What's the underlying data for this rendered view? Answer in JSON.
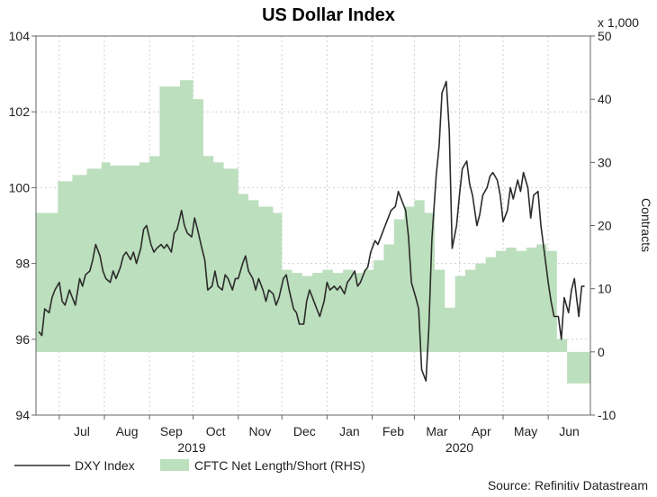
{
  "chart_data": {
    "type": "line+area",
    "title": "US Dollar Index",
    "x_axis": {
      "months": [
        "Jul",
        "Aug",
        "Sep",
        "Oct",
        "Nov",
        "Dec",
        "Jan",
        "Feb",
        "Mar",
        "Apr",
        "May",
        "Jun"
      ],
      "years": [
        "2019",
        "2020"
      ]
    },
    "y_left": {
      "range": [
        94,
        104
      ],
      "ticks": [
        94,
        96,
        98,
        100,
        102,
        104
      ]
    },
    "y_right": {
      "range": [
        -10,
        50
      ],
      "ticks": [
        -10,
        0,
        10,
        20,
        30,
        40,
        50
      ],
      "unit_label": "x 1,000",
      "label": "Contracts"
    },
    "grid": true,
    "legend_position": "bottom-left",
    "series": [
      {
        "name": "DXY Index",
        "type": "line",
        "color": "#2b2b2b",
        "axis": "left",
        "points": [
          [
            "2019-06-17",
            96.2
          ],
          [
            "2019-06-19",
            96.1
          ],
          [
            "2019-06-21",
            96.8
          ],
          [
            "2019-06-24",
            96.7
          ],
          [
            "2019-06-26",
            97.1
          ],
          [
            "2019-06-28",
            97.3
          ],
          [
            "2019-07-01",
            97.5
          ],
          [
            "2019-07-03",
            97.0
          ],
          [
            "2019-07-05",
            96.9
          ],
          [
            "2019-07-08",
            97.3
          ],
          [
            "2019-07-10",
            97.1
          ],
          [
            "2019-07-12",
            96.9
          ],
          [
            "2019-07-15",
            97.6
          ],
          [
            "2019-07-17",
            97.4
          ],
          [
            "2019-07-19",
            97.7
          ],
          [
            "2019-07-22",
            97.8
          ],
          [
            "2019-07-24",
            98.1
          ],
          [
            "2019-07-26",
            98.5
          ],
          [
            "2019-07-29",
            98.2
          ],
          [
            "2019-07-31",
            97.8
          ],
          [
            "2019-08-02",
            97.6
          ],
          [
            "2019-08-05",
            97.5
          ],
          [
            "2019-08-07",
            97.8
          ],
          [
            "2019-08-09",
            97.6
          ],
          [
            "2019-08-12",
            97.9
          ],
          [
            "2019-08-14",
            98.2
          ],
          [
            "2019-08-16",
            98.3
          ],
          [
            "2019-08-19",
            98.1
          ],
          [
            "2019-08-21",
            98.3
          ],
          [
            "2019-08-23",
            98.0
          ],
          [
            "2019-08-26",
            98.4
          ],
          [
            "2019-08-28",
            98.9
          ],
          [
            "2019-08-30",
            99.0
          ],
          [
            "2019-09-02",
            98.5
          ],
          [
            "2019-09-04",
            98.3
          ],
          [
            "2019-09-06",
            98.4
          ],
          [
            "2019-09-09",
            98.5
          ],
          [
            "2019-09-11",
            98.4
          ],
          [
            "2019-09-13",
            98.5
          ],
          [
            "2019-09-16",
            98.3
          ],
          [
            "2019-09-18",
            98.8
          ],
          [
            "2019-09-20",
            98.9
          ],
          [
            "2019-09-23",
            99.4
          ],
          [
            "2019-09-25",
            99.0
          ],
          [
            "2019-09-27",
            98.8
          ],
          [
            "2019-09-30",
            98.7
          ],
          [
            "2019-10-02",
            99.2
          ],
          [
            "2019-10-04",
            98.9
          ],
          [
            "2019-10-07",
            98.4
          ],
          [
            "2019-10-09",
            98.1
          ],
          [
            "2019-10-11",
            97.3
          ],
          [
            "2019-10-14",
            97.4
          ],
          [
            "2019-10-16",
            97.8
          ],
          [
            "2019-10-18",
            97.4
          ],
          [
            "2019-10-21",
            97.3
          ],
          [
            "2019-10-23",
            97.7
          ],
          [
            "2019-10-25",
            97.6
          ],
          [
            "2019-10-28",
            97.3
          ],
          [
            "2019-10-30",
            97.6
          ],
          [
            "2019-11-01",
            97.6
          ],
          [
            "2019-11-04",
            98.0
          ],
          [
            "2019-11-06",
            98.2
          ],
          [
            "2019-11-08",
            97.8
          ],
          [
            "2019-11-11",
            97.6
          ],
          [
            "2019-11-13",
            97.3
          ],
          [
            "2019-11-15",
            97.6
          ],
          [
            "2019-11-18",
            97.3
          ],
          [
            "2019-11-20",
            97.0
          ],
          [
            "2019-11-22",
            97.3
          ],
          [
            "2019-11-25",
            97.2
          ],
          [
            "2019-11-27",
            96.9
          ],
          [
            "2019-11-29",
            97.1
          ],
          [
            "2019-12-02",
            97.6
          ],
          [
            "2019-12-04",
            97.7
          ],
          [
            "2019-12-06",
            97.3
          ],
          [
            "2019-12-09",
            96.8
          ],
          [
            "2019-12-11",
            96.7
          ],
          [
            "2019-12-13",
            96.4
          ],
          [
            "2019-12-16",
            96.4
          ],
          [
            "2019-12-18",
            97.0
          ],
          [
            "2019-12-20",
            97.3
          ],
          [
            "2019-12-23",
            97.0
          ],
          [
            "2019-12-25",
            96.8
          ],
          [
            "2019-12-27",
            96.6
          ],
          [
            "2019-12-30",
            97.0
          ],
          [
            "2020-01-01",
            97.5
          ],
          [
            "2020-01-03",
            97.3
          ],
          [
            "2020-01-06",
            97.4
          ],
          [
            "2020-01-08",
            97.3
          ],
          [
            "2020-01-10",
            97.4
          ],
          [
            "2020-01-13",
            97.2
          ],
          [
            "2020-01-15",
            97.5
          ],
          [
            "2020-01-17",
            97.6
          ],
          [
            "2020-01-20",
            97.8
          ],
          [
            "2020-01-22",
            97.4
          ],
          [
            "2020-01-24",
            97.5
          ],
          [
            "2020-01-27",
            97.8
          ],
          [
            "2020-01-29",
            97.9
          ],
          [
            "2020-01-31",
            98.3
          ],
          [
            "2020-02-03",
            98.6
          ],
          [
            "2020-02-05",
            98.5
          ],
          [
            "2020-02-07",
            98.7
          ],
          [
            "2020-02-10",
            99.0
          ],
          [
            "2020-02-12",
            99.2
          ],
          [
            "2020-02-14",
            99.4
          ],
          [
            "2020-02-17",
            99.5
          ],
          [
            "2020-02-19",
            99.9
          ],
          [
            "2020-02-21",
            99.7
          ],
          [
            "2020-02-24",
            99.4
          ],
          [
            "2020-02-26",
            98.7
          ],
          [
            "2020-02-28",
            97.5
          ],
          [
            "2020-03-02",
            97.1
          ],
          [
            "2020-03-04",
            96.8
          ],
          [
            "2020-03-06",
            95.2
          ],
          [
            "2020-03-09",
            94.9
          ],
          [
            "2020-03-11",
            96.3
          ],
          [
            "2020-03-13",
            98.6
          ],
          [
            "2020-03-16",
            100.3
          ],
          [
            "2020-03-18",
            101.1
          ],
          [
            "2020-03-20",
            102.5
          ],
          [
            "2020-03-23",
            102.8
          ],
          [
            "2020-03-25",
            101.5
          ],
          [
            "2020-03-27",
            98.4
          ],
          [
            "2020-03-30",
            99.0
          ],
          [
            "2020-04-01",
            99.8
          ],
          [
            "2020-04-03",
            100.5
          ],
          [
            "2020-04-06",
            100.7
          ],
          [
            "2020-04-08",
            100.1
          ],
          [
            "2020-04-10",
            99.8
          ],
          [
            "2020-04-13",
            99.0
          ],
          [
            "2020-04-15",
            99.3
          ],
          [
            "2020-04-17",
            99.8
          ],
          [
            "2020-04-20",
            100.0
          ],
          [
            "2020-04-22",
            100.3
          ],
          [
            "2020-04-24",
            100.4
          ],
          [
            "2020-04-27",
            100.2
          ],
          [
            "2020-04-29",
            99.8
          ],
          [
            "2020-05-01",
            99.1
          ],
          [
            "2020-05-04",
            99.4
          ],
          [
            "2020-05-06",
            100.0
          ],
          [
            "2020-05-08",
            99.7
          ],
          [
            "2020-05-11",
            100.2
          ],
          [
            "2020-05-13",
            99.9
          ],
          [
            "2020-05-15",
            100.4
          ],
          [
            "2020-05-18",
            100.0
          ],
          [
            "2020-05-20",
            99.2
          ],
          [
            "2020-05-22",
            99.8
          ],
          [
            "2020-05-25",
            99.9
          ],
          [
            "2020-05-27",
            99.0
          ],
          [
            "2020-05-29",
            98.4
          ],
          [
            "2020-06-01",
            97.5
          ],
          [
            "2020-06-03",
            97.0
          ],
          [
            "2020-06-05",
            96.6
          ],
          [
            "2020-06-08",
            96.6
          ],
          [
            "2020-06-10",
            96.0
          ],
          [
            "2020-06-12",
            97.1
          ],
          [
            "2020-06-15",
            96.7
          ],
          [
            "2020-06-17",
            97.3
          ],
          [
            "2020-06-19",
            97.6
          ],
          [
            "2020-06-22",
            96.6
          ],
          [
            "2020-06-24",
            97.4
          ],
          [
            "2020-06-26",
            97.4
          ]
        ]
      },
      {
        "name": "CFTC Net Length/Short (RHS)",
        "type": "area-step",
        "color": "#bcdfbd",
        "axis": "right",
        "points": [
          [
            "2019-06-15",
            22
          ],
          [
            "2019-06-25",
            22
          ],
          [
            "2019-06-30",
            27
          ],
          [
            "2019-07-10",
            28
          ],
          [
            "2019-07-20",
            29
          ],
          [
            "2019-07-30",
            30
          ],
          [
            "2019-08-05",
            29.5
          ],
          [
            "2019-08-15",
            29.5
          ],
          [
            "2019-08-25",
            30
          ],
          [
            "2019-09-01",
            31
          ],
          [
            "2019-09-08",
            42
          ],
          [
            "2019-09-22",
            43
          ],
          [
            "2019-10-01",
            40
          ],
          [
            "2019-10-08",
            31
          ],
          [
            "2019-10-15",
            30
          ],
          [
            "2019-10-22",
            29
          ],
          [
            "2019-11-01",
            25
          ],
          [
            "2019-11-08",
            24
          ],
          [
            "2019-11-15",
            23
          ],
          [
            "2019-11-25",
            22
          ],
          [
            "2019-12-01",
            13
          ],
          [
            "2019-12-08",
            12.5
          ],
          [
            "2019-12-15",
            12
          ],
          [
            "2019-12-22",
            12.5
          ],
          [
            "2019-12-29",
            13
          ],
          [
            "2020-01-05",
            12.5
          ],
          [
            "2020-01-12",
            13
          ],
          [
            "2020-01-19",
            12.5
          ],
          [
            "2020-01-26",
            13
          ],
          [
            "2020-02-02",
            14.5
          ],
          [
            "2020-02-09",
            17
          ],
          [
            "2020-02-16",
            21
          ],
          [
            "2020-02-23",
            23
          ],
          [
            "2020-03-01",
            24
          ],
          [
            "2020-03-08",
            22
          ],
          [
            "2020-03-15",
            13
          ],
          [
            "2020-03-22",
            7
          ],
          [
            "2020-03-29",
            12
          ],
          [
            "2020-04-05",
            13
          ],
          [
            "2020-04-12",
            14
          ],
          [
            "2020-04-19",
            15
          ],
          [
            "2020-04-26",
            16
          ],
          [
            "2020-05-03",
            16.5
          ],
          [
            "2020-05-10",
            16
          ],
          [
            "2020-05-17",
            16.5
          ],
          [
            "2020-05-24",
            17
          ],
          [
            "2020-05-31",
            16
          ],
          [
            "2020-06-07",
            2
          ],
          [
            "2020-06-14",
            -5
          ],
          [
            "2020-06-26",
            -5
          ]
        ]
      }
    ],
    "source": "Source: Refinitiv Datastream"
  }
}
